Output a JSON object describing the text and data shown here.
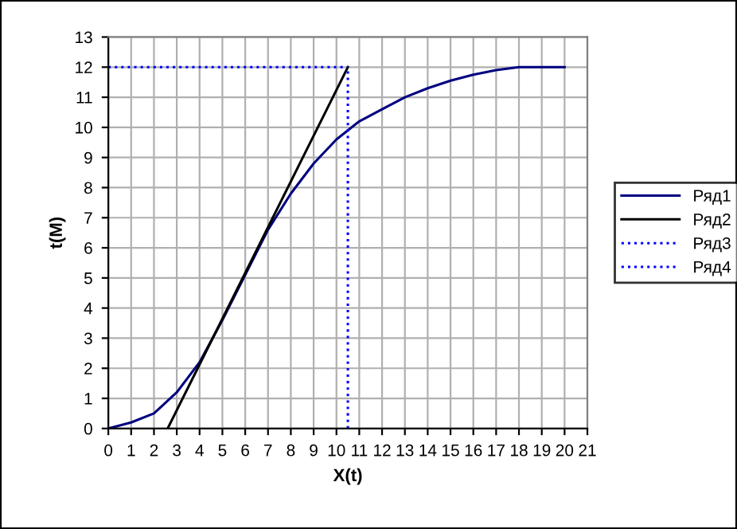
{
  "chart_data": {
    "type": "line",
    "xlabel": "X(t)",
    "ylabel": "t(M)",
    "xlim": [
      0,
      21
    ],
    "ylim": [
      0,
      13
    ],
    "xticks": [
      0,
      1,
      2,
      3,
      4,
      5,
      6,
      7,
      8,
      9,
      10,
      11,
      12,
      13,
      14,
      15,
      16,
      17,
      18,
      19,
      20,
      21
    ],
    "yticks": [
      0,
      1,
      2,
      3,
      4,
      5,
      6,
      7,
      8,
      9,
      10,
      11,
      12,
      13
    ],
    "grid": true,
    "legend": "right",
    "marker": "none",
    "series": [
      {
        "name": "Ряд1",
        "color": "#000080",
        "line_style": "solid",
        "x": [
          0,
          1,
          2,
          3,
          4,
          5,
          6,
          7,
          8,
          9,
          10,
          11,
          12,
          13,
          14,
          15,
          16,
          17,
          18,
          19,
          20
        ],
        "values": [
          0,
          0.2,
          0.5,
          1.2,
          2.2,
          3.6,
          5.1,
          6.6,
          7.8,
          8.8,
          9.6,
          10.2,
          10.6,
          11.0,
          11.3,
          11.55,
          11.75,
          11.9,
          12,
          12,
          12
        ]
      },
      {
        "name": "Ряд2",
        "color": "#000000",
        "line_style": "solid",
        "x": [
          2.6,
          10.5
        ],
        "values": [
          0,
          12
        ]
      },
      {
        "name": "Ряд3",
        "color": "#0000ff",
        "line_style": "dotted",
        "x": [
          0,
          10.5
        ],
        "values": [
          12,
          12
        ]
      },
      {
        "name": "Ряд4",
        "color": "#0000ff",
        "line_style": "dotted",
        "x": [
          10.5,
          10.5
        ],
        "values": [
          0,
          12
        ]
      }
    ]
  }
}
